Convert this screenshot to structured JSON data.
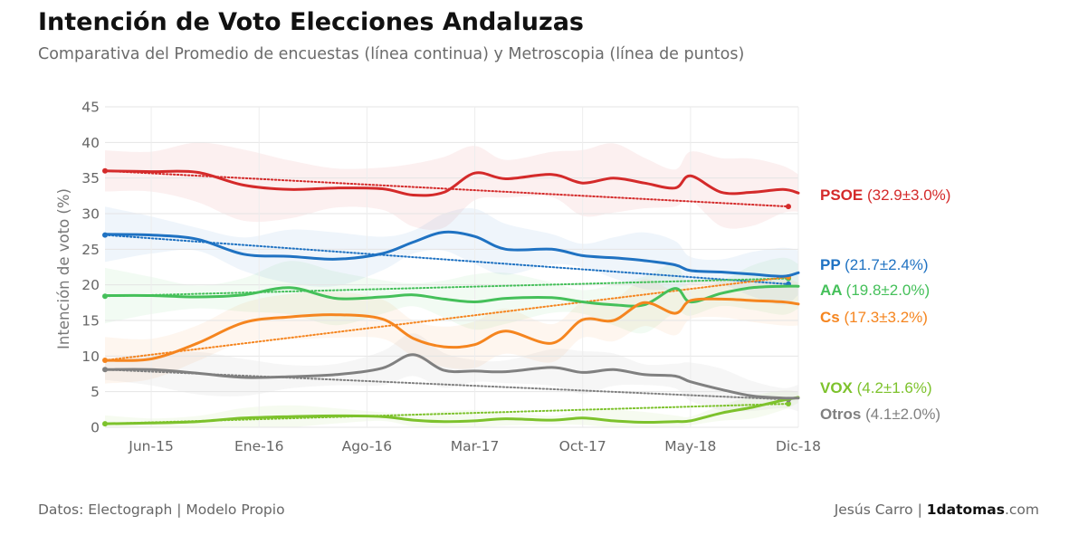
{
  "chart_data": {
    "type": "line",
    "title": "Intención de Voto Elecciones Andaluzas",
    "subtitle": "Comparativa del Promedio de encuestas (línea continua) y Metroscopia (línea de puntos)",
    "ylabel": "Intención de voto (%)",
    "xlabel": "",
    "ylim": [
      0,
      45
    ],
    "yticks": [
      0,
      5,
      10,
      15,
      20,
      25,
      30,
      35,
      40,
      45
    ],
    "xlim": [
      "2015-03",
      "2018-12"
    ],
    "xticks": [
      "Jun-15",
      "Ene-16",
      "Ago-16",
      "Mar-17",
      "Oct-17",
      "May-18",
      "Dic-18"
    ],
    "xtick_months": [
      3,
      10,
      17,
      24,
      31,
      38,
      45
    ],
    "grid": true,
    "series": [
      {
        "name": "PSOE",
        "result": "(32.9±3.0%)",
        "color": "#d42a2a",
        "x": [
          "2015-03",
          "2015-06",
          "2015-09",
          "2015-12",
          "2016-03",
          "2016-06",
          "2016-09",
          "2016-11",
          "2017-01",
          "2017-03",
          "2017-05",
          "2017-08",
          "2017-10",
          "2017-12",
          "2018-02",
          "2018-04",
          "2018-05",
          "2018-07",
          "2018-09",
          "2018-11",
          "2018-12"
        ],
        "y": [
          36.0,
          35.9,
          35.8,
          34.0,
          33.4,
          33.6,
          33.5,
          32.6,
          33.0,
          35.7,
          34.9,
          35.5,
          34.3,
          35.0,
          34.3,
          33.6,
          35.3,
          33.0,
          33.0,
          33.4,
          32.9
        ],
        "trend": [
          36.0,
          31.0
        ],
        "band": [
          2.6,
          5.0
        ]
      },
      {
        "name": "PP",
        "result": "(21.7±2.4%)",
        "color": "#1f72c2",
        "x": [
          "2015-03",
          "2015-06",
          "2015-09",
          "2015-12",
          "2016-03",
          "2016-06",
          "2016-09",
          "2016-11",
          "2017-01",
          "2017-03",
          "2017-05",
          "2017-08",
          "2017-10",
          "2017-12",
          "2018-02",
          "2018-04",
          "2018-05",
          "2018-07",
          "2018-09",
          "2018-11",
          "2018-12"
        ],
        "y": [
          27.1,
          27.0,
          26.4,
          24.3,
          24.0,
          23.6,
          24.4,
          26.0,
          27.4,
          26.8,
          25.0,
          25.0,
          24.1,
          23.8,
          23.4,
          22.8,
          22.0,
          21.8,
          21.5,
          21.2,
          21.7
        ],
        "trend": [
          27.0,
          20.1
        ],
        "band": [
          1.6,
          4.0
        ]
      },
      {
        "name": "AA",
        "result": "(19.8±2.0%)",
        "color": "#45c05a",
        "x": [
          "2015-03",
          "2015-06",
          "2015-09",
          "2015-12",
          "2016-03",
          "2016-06",
          "2016-09",
          "2016-11",
          "2017-01",
          "2017-03",
          "2017-05",
          "2017-08",
          "2017-10",
          "2017-12",
          "2018-02",
          "2018-04",
          "2018-05",
          "2018-07",
          "2018-09",
          "2018-11",
          "2018-12"
        ],
        "y": [
          18.5,
          18.5,
          18.3,
          18.6,
          19.6,
          18.1,
          18.3,
          18.6,
          18.0,
          17.6,
          18.1,
          18.2,
          17.6,
          17.2,
          17.2,
          19.5,
          17.6,
          18.8,
          19.6,
          19.8,
          19.8
        ],
        "trend": [
          18.4,
          20.9
        ],
        "band": [
          1.6,
          4.0
        ]
      },
      {
        "name": "Cs",
        "result": "(17.3±3.2%)",
        "color": "#f5851f",
        "x": [
          "2015-03",
          "2015-06",
          "2015-09",
          "2015-12",
          "2016-03",
          "2016-06",
          "2016-09",
          "2016-11",
          "2017-01",
          "2017-03",
          "2017-05",
          "2017-08",
          "2017-10",
          "2017-12",
          "2018-02",
          "2018-04",
          "2018-05",
          "2018-07",
          "2018-09",
          "2018-11",
          "2018-12"
        ],
        "y": [
          9.4,
          9.6,
          11.8,
          14.7,
          15.5,
          15.8,
          15.2,
          12.5,
          11.3,
          11.6,
          13.5,
          11.8,
          15.1,
          15.0,
          17.5,
          16.0,
          17.8,
          18.0,
          17.8,
          17.6,
          17.3
        ],
        "trend": [
          9.4,
          21.1
        ],
        "band": [
          2.5,
          3.3
        ]
      },
      {
        "name": "VOX",
        "result": "(4.2±1.6%)",
        "color": "#7dc22c",
        "x": [
          "2015-03",
          "2015-06",
          "2015-09",
          "2015-12",
          "2016-03",
          "2016-06",
          "2016-09",
          "2016-11",
          "2017-01",
          "2017-03",
          "2017-05",
          "2017-08",
          "2017-10",
          "2017-12",
          "2018-02",
          "2018-04",
          "2018-05",
          "2018-07",
          "2018-09",
          "2018-11",
          "2018-12"
        ],
        "y": [
          0.5,
          0.6,
          0.8,
          1.3,
          1.5,
          1.6,
          1.5,
          1.0,
          0.8,
          0.9,
          1.2,
          1.0,
          1.3,
          0.9,
          0.7,
          0.8,
          0.9,
          2.0,
          2.8,
          3.8,
          4.2
        ],
        "trend": [
          0.5,
          3.3
        ],
        "band": [
          0.6,
          1.6
        ]
      },
      {
        "name": "Otros",
        "result": "(4.1±2.0%)",
        "color": "#808080",
        "x": [
          "2015-03",
          "2015-06",
          "2015-09",
          "2015-12",
          "2016-03",
          "2016-06",
          "2016-09",
          "2016-11",
          "2017-01",
          "2017-03",
          "2017-05",
          "2017-08",
          "2017-10",
          "2017-12",
          "2018-02",
          "2018-04",
          "2018-05",
          "2018-07",
          "2018-09",
          "2018-11",
          "2018-12"
        ],
        "y": [
          8.1,
          8.1,
          7.6,
          7.0,
          7.1,
          7.4,
          8.3,
          10.2,
          8.0,
          7.9,
          7.8,
          8.4,
          7.7,
          8.1,
          7.4,
          7.2,
          6.4,
          5.3,
          4.4,
          4.1,
          4.1
        ],
        "trend": [
          8.1,
          3.9
        ],
        "band": [
          1.4,
          3.0
        ]
      }
    ]
  },
  "footer": {
    "source": "Datos: Electograph | Modelo Propio",
    "author": "Jesús Carro | ",
    "brand_bold": "1datomas",
    "brand_tail": ".com"
  }
}
